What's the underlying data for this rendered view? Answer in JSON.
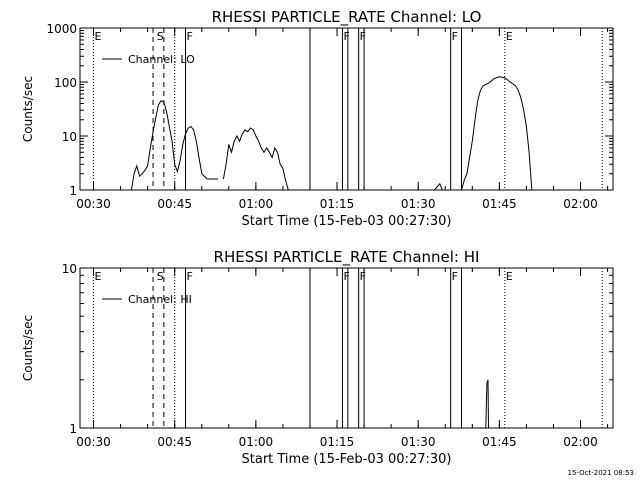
{
  "footer_timestamp": "15-Oct-2021 08:53",
  "chart_data": [
    {
      "type": "line",
      "title": "RHESSI PARTICLE_RATE Channel: LO",
      "xlabel": "Start Time (15-Feb-03 00:27:30)",
      "ylabel": "Counts/sec",
      "y_scale": "log",
      "xlim": [
        "00:27:30",
        "02:06:00"
      ],
      "ylim": [
        1,
        1000
      ],
      "x_ticks": [
        "00:30",
        "00:45",
        "01:00",
        "01:15",
        "01:30",
        "01:45",
        "02:00"
      ],
      "y_ticks": [
        "1",
        "10",
        "100",
        "1000"
      ],
      "legend": {
        "position": "top-left"
      },
      "series": [
        {
          "name": "Channel: LO",
          "segments": [
            [
              [
                "00:37",
                "1.0"
              ],
              [
                "00:37.5",
                "2.0"
              ],
              [
                "00:38",
                "2.8"
              ],
              [
                "00:38.5",
                "1.8"
              ],
              [
                "00:39",
                "2.0"
              ],
              [
                "00:39.5",
                "2.3"
              ],
              [
                "00:40",
                "2.8"
              ],
              [
                "00:40.5",
                "6"
              ],
              [
                "00:41",
                "12"
              ],
              [
                "00:41.5",
                "22"
              ],
              [
                "00:42",
                "38"
              ],
              [
                "00:42.5",
                "45"
              ],
              [
                "00:43",
                "42"
              ],
              [
                "00:43.5",
                "28"
              ],
              [
                "00:44",
                "15"
              ],
              [
                "00:44.5",
                "8"
              ],
              [
                "00:45",
                "3"
              ],
              [
                "00:45.5",
                "2.2"
              ],
              [
                "00:46",
                "3.5"
              ],
              [
                "00:46.5",
                "7"
              ],
              [
                "00:47",
                "11"
              ],
              [
                "00:47.5",
                "14"
              ],
              [
                "00:48",
                "15"
              ],
              [
                "00:48.5",
                "13"
              ],
              [
                "00:49",
                "8"
              ],
              [
                "00:49.5",
                "4"
              ],
              [
                "00:50",
                "2.0"
              ],
              [
                "00:51",
                "1.6"
              ],
              [
                "00:52",
                "1.6"
              ],
              [
                "00:53",
                "1.6"
              ]
            ],
            [
              [
                "00:54",
                "1.6"
              ],
              [
                "00:54.5",
                "3"
              ],
              [
                "00:55",
                "7"
              ],
              [
                "00:55.5",
                "5"
              ],
              [
                "00:56",
                "8"
              ],
              [
                "00:56.5",
                "10"
              ],
              [
                "00:57",
                "8"
              ],
              [
                "00:57.5",
                "11"
              ],
              [
                "00:58",
                "13"
              ],
              [
                "00:58.5",
                "12"
              ],
              [
                "00:59",
                "14"
              ],
              [
                "00:59.5",
                "13"
              ],
              [
                "01:00",
                "10"
              ],
              [
                "01:00.5",
                "8"
              ],
              [
                "01:01",
                "6"
              ],
              [
                "01:01.5",
                "5"
              ],
              [
                "01:02",
                "6"
              ],
              [
                "01:02.5",
                "5"
              ],
              [
                "01:03",
                "4"
              ],
              [
                "01:03.5",
                "6"
              ],
              [
                "01:04",
                "5"
              ],
              [
                "01:04.5",
                "3"
              ],
              [
                "01:05",
                "2.5"
              ],
              [
                "01:05.5",
                "1.5"
              ],
              [
                "01:06",
                "1.0"
              ]
            ],
            [
              [
                "01:33",
                "1.0"
              ],
              [
                "01:34",
                "1.3"
              ],
              [
                "01:34.5",
                "1.0"
              ]
            ],
            [
              [
                "01:38",
                "1.0"
              ],
              [
                "01:38.5",
                "1.5"
              ],
              [
                "01:39",
                "2"
              ],
              [
                "01:39.5",
                "4"
              ],
              [
                "01:40",
                "8"
              ],
              [
                "01:40.5",
                "20"
              ],
              [
                "01:41",
                "45"
              ],
              [
                "01:41.5",
                "70"
              ],
              [
                "01:42",
                "85"
              ],
              [
                "01:43",
                "95"
              ],
              [
                "01:44",
                "115"
              ],
              [
                "01:45",
                "125"
              ],
              [
                "01:46",
                "120"
              ],
              [
                "01:47",
                "100"
              ],
              [
                "01:48",
                "85"
              ],
              [
                "01:48.5",
                "70"
              ],
              [
                "01:49",
                "50"
              ],
              [
                "01:49.5",
                "30"
              ],
              [
                "01:50",
                "15"
              ],
              [
                "01:50.5",
                "5"
              ],
              [
                "01:51",
                "1.0"
              ]
            ]
          ]
        }
      ],
      "annotations": [
        {
          "label": "E",
          "time": "00:30",
          "style": "dotted"
        },
        {
          "label": "S",
          "time": "00:41.5",
          "style": "dashed",
          "lines": [
            "00:41",
            "00:43"
          ]
        },
        {
          "label": "",
          "time": "00:45",
          "style": "dotted"
        },
        {
          "label": "F",
          "time": "00:47",
          "style": "solid"
        },
        {
          "label": "",
          "time": "01:10",
          "style": "solid"
        },
        {
          "label": "F",
          "time": "01:16",
          "style": "solid"
        },
        {
          "label": "",
          "time": "01:17",
          "style": "solid"
        },
        {
          "label": "F",
          "time": "01:19",
          "style": "solid"
        },
        {
          "label": "",
          "time": "01:20",
          "style": "solid"
        },
        {
          "label": "F",
          "time": "01:36",
          "style": "solid"
        },
        {
          "label": "",
          "time": "01:38",
          "style": "solid"
        },
        {
          "label": "E",
          "time": "01:46",
          "style": "dotted"
        },
        {
          "label": "",
          "time": "02:04",
          "style": "dotted"
        }
      ]
    },
    {
      "type": "line",
      "title": "RHESSI PARTICLE_RATE Channel: HI",
      "xlabel": "Start Time (15-Feb-03 00:27:30)",
      "ylabel": "Counts/sec",
      "y_scale": "log",
      "xlim": [
        "00:27:30",
        "02:06:00"
      ],
      "ylim": [
        1,
        10
      ],
      "x_ticks": [
        "00:30",
        "00:45",
        "01:00",
        "01:15",
        "01:30",
        "01:45",
        "02:00"
      ],
      "y_ticks": [
        "1",
        "10"
      ],
      "legend": {
        "position": "top-left"
      },
      "series": [
        {
          "name": "Channel: HI",
          "segments": [
            [
              [
                "01:42.5",
                "1.0"
              ],
              [
                "01:42.7",
                "1.9"
              ],
              [
                "01:42.9",
                "2.0"
              ],
              [
                "01:43",
                "1.0"
              ]
            ]
          ]
        }
      ],
      "annotations": [
        {
          "label": "E",
          "time": "00:30",
          "style": "dotted"
        },
        {
          "label": "S",
          "time": "00:41.5",
          "style": "dashed",
          "lines": [
            "00:41",
            "00:43"
          ]
        },
        {
          "label": "",
          "time": "00:45",
          "style": "dotted"
        },
        {
          "label": "F",
          "time": "00:47",
          "style": "solid"
        },
        {
          "label": "",
          "time": "01:10",
          "style": "solid"
        },
        {
          "label": "F",
          "time": "01:16",
          "style": "solid"
        },
        {
          "label": "",
          "time": "01:17",
          "style": "solid"
        },
        {
          "label": "F",
          "time": "01:19",
          "style": "solid"
        },
        {
          "label": "",
          "time": "01:20",
          "style": "solid"
        },
        {
          "label": "F",
          "time": "01:36",
          "style": "solid"
        },
        {
          "label": "",
          "time": "01:38",
          "style": "solid"
        },
        {
          "label": "E",
          "time": "01:46",
          "style": "dotted"
        },
        {
          "label": "",
          "time": "02:04",
          "style": "dotted"
        }
      ]
    }
  ]
}
